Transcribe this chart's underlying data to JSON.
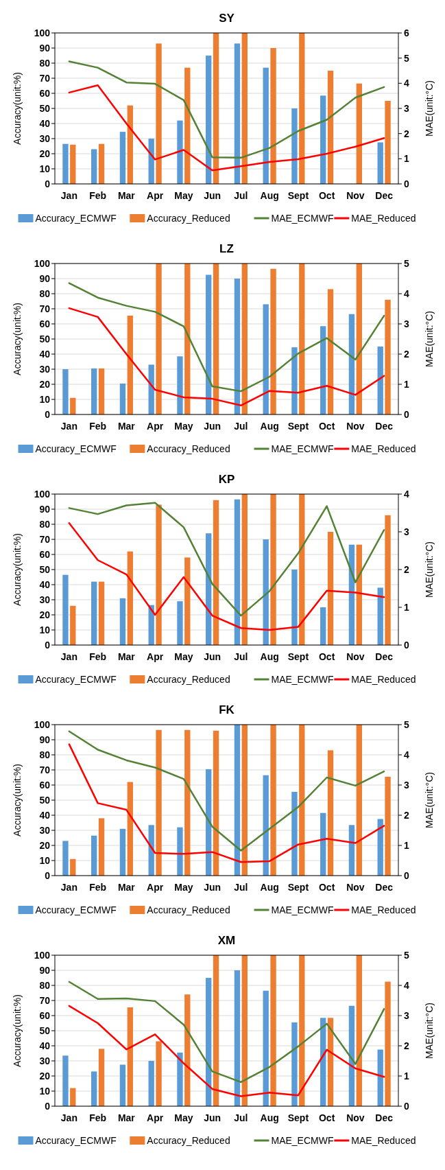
{
  "chart_data": [
    {
      "type": "bar",
      "title": "SY",
      "ylabel": "Accuracy(unit:%)",
      "y2label": "MAE(unit:°C)",
      "categories": [
        "Jan",
        "Feb",
        "Mar",
        "Apr",
        "May",
        "Jun",
        "Jul",
        "Aug",
        "Sept",
        "Oct",
        "Nov",
        "Dec"
      ],
      "ylim": [
        0,
        100
      ],
      "yticks": [
        0,
        10,
        20,
        30,
        40,
        50,
        60,
        70,
        80,
        90,
        100
      ],
      "y2lim": [
        0,
        6
      ],
      "y2ticks": [
        0,
        1,
        2,
        3,
        4,
        5,
        6
      ],
      "grid": "y",
      "legend": "bottom",
      "series": [
        {
          "name": "Accuracy_ECMWF",
          "color": "#5b9bd5",
          "values": [
            26.5,
            23,
            34.5,
            30,
            42,
            85,
            93,
            77,
            50,
            58.5,
            0,
            27.5
          ]
        },
        {
          "name": "Accuracy_Reduced",
          "color": "#ed7d31",
          "values": [
            26,
            26.5,
            52,
            93,
            77,
            100,
            100,
            90,
            100,
            75,
            66.5,
            55
          ]
        },
        {
          "name": "MAE_ECMWF",
          "type": "line",
          "axis": "y2",
          "color": "#548235",
          "values": [
            4.87,
            4.62,
            4.03,
            3.98,
            3.33,
            1.06,
            1.04,
            1.43,
            2.1,
            2.55,
            3.43,
            3.85
          ]
        },
        {
          "name": "MAE_Reduced",
          "type": "line",
          "axis": "y2",
          "color": "#ff0000",
          "values": [
            3.63,
            3.92,
            2.4,
            0.97,
            1.35,
            0.54,
            0.7,
            0.87,
            0.98,
            1.2,
            1.48,
            1.82
          ]
        }
      ]
    },
    {
      "type": "bar",
      "title": "LZ",
      "ylabel": "Accuracy(unit:%)",
      "y2label": "MAE(unit:°C)",
      "categories": [
        "Jan",
        "Feb",
        "Mar",
        "Apr",
        "May",
        "Jun",
        "Jul",
        "Aug",
        "Sept",
        "Oct",
        "Nov",
        "Dec"
      ],
      "ylim": [
        0,
        100
      ],
      "yticks": [
        0,
        10,
        20,
        30,
        40,
        50,
        60,
        70,
        80,
        90,
        100
      ],
      "y2lim": [
        0,
        5
      ],
      "y2ticks": [
        0,
        1,
        2,
        3,
        4,
        5
      ],
      "grid": "y",
      "legend": "bottom",
      "series": [
        {
          "name": "Accuracy_ECMWF",
          "color": "#5b9bd5",
          "values": [
            30,
            30.5,
            20.5,
            33,
            38.5,
            92.5,
            90,
            73,
            44.5,
            58.5,
            66.5,
            45
          ]
        },
        {
          "name": "Accuracy_Reduced",
          "color": "#ed7d31",
          "values": [
            11,
            30.5,
            65.5,
            100,
            100,
            100,
            100,
            96.5,
            100,
            83,
            100,
            76
          ]
        },
        {
          "name": "MAE_ECMWF",
          "type": "line",
          "axis": "y2",
          "color": "#548235",
          "values": [
            4.35,
            3.87,
            3.6,
            3.4,
            2.92,
            0.93,
            0.77,
            1.25,
            2.02,
            2.53,
            1.82,
            3.27
          ]
        },
        {
          "name": "MAE_Reduced",
          "type": "line",
          "axis": "y2",
          "color": "#ff0000",
          "values": [
            3.52,
            3.23,
            2.0,
            0.82,
            0.57,
            0.52,
            0.3,
            0.78,
            0.72,
            0.95,
            0.65,
            1.28
          ]
        }
      ]
    },
    {
      "type": "bar",
      "title": "KP",
      "ylabel": "Accuracy(unit:%)",
      "y2label": "MAE(unit:°C)",
      "categories": [
        "Jan",
        "Feb",
        "Mar",
        "Apr",
        "May",
        "Jun",
        "Jul",
        "Aug",
        "Sept",
        "Oct",
        "Nov",
        "Dec"
      ],
      "ylim": [
        0,
        100
      ],
      "yticks": [
        0,
        10,
        20,
        30,
        40,
        50,
        60,
        70,
        80,
        90,
        100
      ],
      "y2lim": [
        0,
        4
      ],
      "y2ticks": [
        0,
        1,
        2,
        3,
        4
      ],
      "grid": "y",
      "legend": "bottom",
      "series": [
        {
          "name": "Accuracy_ECMWF",
          "color": "#5b9bd5",
          "values": [
            46.5,
            42,
            31,
            26.5,
            29,
            74,
            96.5,
            70,
            50,
            25,
            66.5,
            38
          ]
        },
        {
          "name": "Accuracy_Reduced",
          "color": "#ed7d31",
          "values": [
            26,
            42,
            62,
            93,
            58,
            96,
            100,
            100,
            100,
            75,
            66.5,
            86
          ]
        },
        {
          "name": "MAE_ECMWF",
          "type": "line",
          "axis": "y2",
          "color": "#548235",
          "values": [
            3.63,
            3.47,
            3.7,
            3.77,
            3.12,
            1.62,
            0.78,
            1.43,
            2.43,
            3.68,
            1.66,
            3.05
          ]
        },
        {
          "name": "MAE_Reduced",
          "type": "line",
          "axis": "y2",
          "color": "#ff0000",
          "values": [
            3.23,
            2.25,
            1.87,
            0.8,
            1.8,
            0.78,
            0.45,
            0.4,
            0.48,
            1.44,
            1.39,
            1.27
          ]
        }
      ]
    },
    {
      "type": "bar",
      "title": "FK",
      "ylabel": "Accuracy(unit:%)",
      "y2label": "MAE(unit:°C)",
      "categories": [
        "Jan",
        "Feb",
        "Mar",
        "Apr",
        "May",
        "Jun",
        "Jul",
        "Aug",
        "Sept",
        "Oct",
        "Nov",
        "Dec"
      ],
      "ylim": [
        0,
        100
      ],
      "yticks": [
        0,
        10,
        20,
        30,
        40,
        50,
        60,
        70,
        80,
        90,
        100
      ],
      "y2lim": [
        0,
        5
      ],
      "y2ticks": [
        0,
        1,
        2,
        3,
        4,
        5
      ],
      "grid": "y",
      "legend": "bottom",
      "series": [
        {
          "name": "Accuracy_ECMWF",
          "color": "#5b9bd5",
          "values": [
            23,
            26.5,
            31,
            33.5,
            32,
            70.5,
            100,
            66.5,
            55.5,
            41.5,
            33.5,
            37.5
          ]
        },
        {
          "name": "Accuracy_Reduced",
          "color": "#ed7d31",
          "values": [
            11,
            38,
            62,
            96.5,
            96.5,
            96,
            100,
            100,
            100,
            83,
            100,
            65.5
          ]
        },
        {
          "name": "MAE_ECMWF",
          "type": "line",
          "axis": "y2",
          "color": "#548235",
          "values": [
            4.78,
            4.17,
            3.82,
            3.58,
            3.2,
            1.62,
            0.83,
            1.55,
            2.27,
            3.25,
            2.98,
            3.45
          ]
        },
        {
          "name": "MAE_Reduced",
          "type": "line",
          "axis": "y2",
          "color": "#ff0000",
          "values": [
            4.35,
            2.4,
            2.18,
            0.75,
            0.72,
            0.78,
            0.45,
            0.48,
            1.03,
            1.22,
            1.08,
            1.65
          ]
        }
      ]
    },
    {
      "type": "bar",
      "title": "XM",
      "ylabel": "Accuracy(unit:%)",
      "y2label": "MAE(unit:°C)",
      "categories": [
        "Jan",
        "Feb",
        "Mar",
        "Apr",
        "May",
        "Jun",
        "Jul",
        "Aug",
        "Sept",
        "Oct",
        "Nov",
        "Dec"
      ],
      "ylim": [
        0,
        100
      ],
      "yticks": [
        0,
        10,
        20,
        30,
        40,
        50,
        60,
        70,
        80,
        90,
        100
      ],
      "y2lim": [
        0,
        5
      ],
      "y2ticks": [
        0,
        1,
        2,
        3,
        4,
        5
      ],
      "grid": "y",
      "legend": "bottom",
      "series": [
        {
          "name": "Accuracy_ECMWF",
          "color": "#5b9bd5",
          "values": [
            33.5,
            23,
            27.5,
            30,
            35.5,
            85,
            90,
            76.5,
            55.5,
            58.5,
            66.5,
            37.5
          ]
        },
        {
          "name": "Accuracy_Reduced",
          "color": "#ed7d31",
          "values": [
            12,
            38,
            65.5,
            43,
            74,
            100,
            100,
            100,
            100,
            58.5,
            100,
            82.5
          ]
        },
        {
          "name": "MAE_ECMWF",
          "type": "line",
          "axis": "y2",
          "color": "#548235",
          "values": [
            4.12,
            3.55,
            3.57,
            3.48,
            2.7,
            1.15,
            0.8,
            1.3,
            1.98,
            2.73,
            1.4,
            3.22
          ]
        },
        {
          "name": "MAE_Reduced",
          "type": "line",
          "axis": "y2",
          "color": "#ff0000",
          "values": [
            3.32,
            2.75,
            1.88,
            2.38,
            1.42,
            0.57,
            0.33,
            0.45,
            0.36,
            1.87,
            1.25,
            0.97
          ]
        }
      ]
    }
  ]
}
